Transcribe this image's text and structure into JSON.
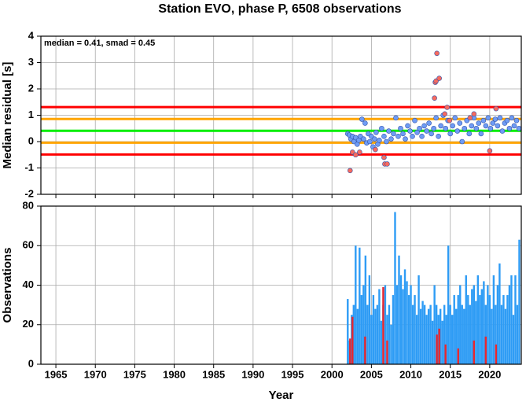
{
  "chart_data": [
    {
      "type": "scatter",
      "title": "Station EVO, phase P, 6508 observations",
      "ylabel": "Median residual [s]",
      "annotation": "median = 0.41, smad = 0.45",
      "xlim": [
        1963.1,
        2024
      ],
      "xticks": [
        1965,
        1970,
        1975,
        1980,
        1985,
        1990,
        1995,
        2000,
        2005,
        2010,
        2015,
        2020
      ],
      "ylim": [
        -2,
        4
      ],
      "yticks": [
        -2,
        -1,
        0,
        1,
        2,
        3,
        4
      ],
      "grid": true,
      "hlines": [
        {
          "value": 1.31,
          "color": "#ff0000"
        },
        {
          "value": 0.86,
          "color": "#ffa500"
        },
        {
          "value": 0.41,
          "color": "#00ee00"
        },
        {
          "value": -0.04,
          "color": "#ffa500"
        },
        {
          "value": -0.49,
          "color": "#ff0000"
        }
      ],
      "series": [
        {
          "color": "#6f9cf5",
          "x": [
            2002.0,
            2002.2,
            2002.4,
            2002.6,
            2002.8,
            2003.0,
            2003.2,
            2003.4,
            2003.6,
            2003.8,
            2004.0,
            2004.2,
            2004.4,
            2004.6,
            2004.8,
            2005.0,
            2005.2,
            2005.4,
            2005.6,
            2005.8,
            2006.0,
            2006.3,
            2006.6,
            2006.9,
            2007.2,
            2007.5,
            2007.8,
            2008.1,
            2008.4,
            2008.7,
            2009.0,
            2009.3,
            2009.6,
            2009.9,
            2010.2,
            2010.5,
            2010.8,
            2011.1,
            2011.4,
            2011.7,
            2012.0,
            2012.3,
            2012.6,
            2012.9,
            2013.2,
            2013.5,
            2013.8,
            2014.1,
            2014.4,
            2014.7,
            2015.0,
            2015.3,
            2015.6,
            2015.9,
            2016.2,
            2016.5,
            2016.8,
            2017.1,
            2017.4,
            2017.7,
            2018.0,
            2018.3,
            2018.6,
            2018.9,
            2019.2,
            2019.5,
            2019.8,
            2020.1,
            2020.4,
            2020.7,
            2021.0,
            2021.3,
            2021.6,
            2021.9,
            2022.2,
            2022.5,
            2022.8,
            2023.1,
            2023.4,
            2023.7
          ],
          "values": [
            0.3,
            0.25,
            0.1,
            0.2,
            0.0,
            0.15,
            -0.1,
            0.05,
            0.2,
            0.85,
            0.1,
            0.7,
            -0.05,
            0.3,
            0.0,
            0.2,
            -0.2,
            0.1,
            0.35,
            -0.1,
            0.05,
            0.5,
            0.2,
            0.0,
            0.4,
            0.1,
            0.3,
            0.9,
            0.2,
            0.5,
            0.3,
            0.1,
            0.6,
            0.4,
            0.2,
            0.8,
            0.35,
            0.5,
            0.2,
            0.6,
            0.4,
            0.7,
            0.3,
            0.5,
            0.9,
            0.2,
            0.6,
            1.0,
            0.5,
            0.8,
            0.3,
            0.6,
            0.9,
            0.4,
            0.7,
            0.0,
            0.5,
            0.8,
            0.3,
            0.6,
            0.9,
            0.5,
            0.7,
            0.3,
            0.8,
            0.6,
            0.9,
            0.5,
            0.7,
            0.85,
            0.6,
            0.9,
            0.4,
            0.7,
            0.8,
            0.5,
            0.9,
            0.6,
            0.8,
            0.5
          ]
        },
        {
          "color": "#f86a5e",
          "x": [
            2002.3,
            2002.6,
            2003.0,
            2003.5,
            2005.5,
            2006.6,
            2006.7,
            2007.0,
            2013.0,
            2013.1,
            2013.2,
            2013.3,
            2013.6,
            2014.3,
            2014.6,
            2014.9,
            2017.5,
            2018.0,
            2020.0,
            2020.8
          ],
          "values": [
            -1.1,
            -0.4,
            -0.5,
            -0.4,
            -0.3,
            -0.6,
            -0.85,
            -0.85,
            1.65,
            2.25,
            2.3,
            3.35,
            2.4,
            1.05,
            1.3,
            0.8,
            0.9,
            1.05,
            -0.35,
            1.25
          ]
        }
      ]
    },
    {
      "type": "bar",
      "ylabel": "Observations",
      "xlabel": "Year",
      "xlim": [
        1963.1,
        2024
      ],
      "xticks": [
        1965,
        1970,
        1975,
        1980,
        1985,
        1990,
        1995,
        2000,
        2005,
        2010,
        2015,
        2020
      ],
      "ylim": [
        0,
        80
      ],
      "yticks": [
        0,
        20,
        40,
        60,
        80
      ],
      "grid": true,
      "series": [
        {
          "color": "#2e9cf5",
          "x": [
            2002.0,
            2002.25,
            2002.5,
            2002.75,
            2003.0,
            2003.25,
            2003.5,
            2003.75,
            2004.0,
            2004.25,
            2004.5,
            2004.75,
            2005.0,
            2005.25,
            2005.5,
            2005.75,
            2006.0,
            2006.25,
            2006.5,
            2006.75,
            2007.0,
            2007.25,
            2007.5,
            2007.75,
            2008.0,
            2008.25,
            2008.5,
            2008.75,
            2009.0,
            2009.25,
            2009.5,
            2009.75,
            2010.0,
            2010.25,
            2010.5,
            2010.75,
            2011.0,
            2011.25,
            2011.5,
            2011.75,
            2012.0,
            2012.25,
            2012.5,
            2012.75,
            2013.0,
            2013.25,
            2013.5,
            2013.75,
            2014.0,
            2014.25,
            2014.5,
            2014.75,
            2015.0,
            2015.25,
            2015.5,
            2015.75,
            2016.0,
            2016.25,
            2016.5,
            2016.75,
            2017.0,
            2017.25,
            2017.5,
            2017.75,
            2018.0,
            2018.25,
            2018.5,
            2018.75,
            2019.0,
            2019.25,
            2019.5,
            2019.75,
            2020.0,
            2020.25,
            2020.5,
            2020.75,
            2021.0,
            2021.25,
            2021.5,
            2021.75,
            2022.0,
            2022.25,
            2022.5,
            2022.75,
            2023.0,
            2023.25,
            2023.5,
            2023.75
          ],
          "values": [
            33,
            12,
            25,
            30,
            60,
            28,
            59,
            35,
            40,
            55,
            30,
            45,
            25,
            35,
            28,
            30,
            38,
            22,
            30,
            40,
            25,
            30,
            20,
            35,
            77,
            40,
            55,
            45,
            38,
            48,
            42,
            35,
            40,
            30,
            35,
            25,
            45,
            28,
            32,
            30,
            25,
            28,
            30,
            22,
            40,
            30,
            25,
            28,
            22,
            30,
            25,
            60,
            30,
            25,
            35,
            28,
            35,
            40,
            30,
            28,
            45,
            35,
            30,
            38,
            40,
            32,
            45,
            35,
            38,
            42,
            30,
            40,
            35,
            28,
            45,
            30,
            40,
            51,
            30,
            35,
            28,
            35,
            40,
            45,
            25,
            45,
            30,
            63
          ]
        },
        {
          "color": "#e8262e",
          "x": [
            2002.3,
            2002.6,
            2004.2,
            2006.5,
            2007.0,
            2013.3,
            2013.6,
            2014.4,
            2016.0,
            2018.0,
            2019.5,
            2020.8
          ],
          "values": [
            13,
            24,
            14,
            39,
            12,
            15,
            18,
            10,
            8,
            12,
            14,
            10
          ]
        }
      ]
    }
  ]
}
